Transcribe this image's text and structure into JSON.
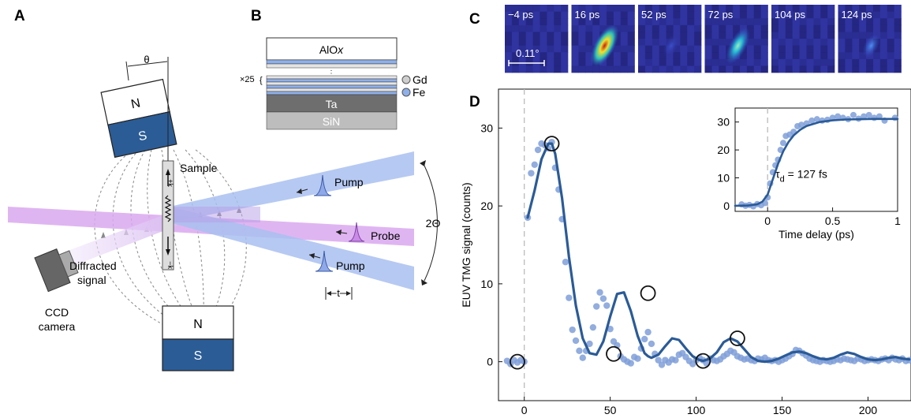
{
  "panels": {
    "a": "A",
    "b": "B",
    "c": "C",
    "d": "D"
  },
  "panel_a": {
    "theta": "θ",
    "magnet_pole_n": "N",
    "magnet_pole_s": "S",
    "sample": "Sample",
    "diffracted_line1": "Diffracted",
    "diffracted_line2": "signal",
    "ccd_line1": "CCD",
    "ccd_line2": "camera",
    "pump": "Pump",
    "probe": "Probe",
    "two_theta": "2Θ",
    "t": "t",
    "k_plus": "+k",
    "k_minus": "−k"
  },
  "panel_b": {
    "aloxa": "AlO",
    "aloxb": "x",
    "repeat": "×25",
    "gd": "Gd",
    "fe": "Fe",
    "ta": "Ta",
    "sin": "SiN"
  },
  "panel_c": {
    "frames": [
      "−4 ps",
      "16 ps",
      "52 ps",
      "72 ps",
      "104 ps",
      "124 ps"
    ],
    "frame_intensity": [
      0.0,
      1.0,
      0.05,
      0.45,
      0.0,
      0.2
    ],
    "scale": "0.11°"
  },
  "colors": {
    "pump": "#a9bff0",
    "probe": "#d9a8ee",
    "magnet_s": "#2b5c96",
    "fit": "#2b5b97",
    "points": "#7f9fd8"
  },
  "chart_data": [
    {
      "type": "scatter",
      "title": "",
      "xlabel": "Time delay (ps)",
      "ylabel": "EUV TMG signal (counts)",
      "xlim": [
        -15,
        225
      ],
      "ylim": [
        -5,
        35
      ],
      "xticks": [
        "0",
        "50",
        "100",
        "150",
        "200"
      ],
      "yticks": [
        "0",
        "10",
        "20",
        "30"
      ],
      "points_x": [
        -10,
        -8,
        -6,
        -4,
        -2,
        0,
        2,
        4,
        6,
        8,
        10,
        12,
        14,
        16,
        18,
        20,
        22,
        24,
        26,
        28,
        30,
        32,
        34,
        36,
        38,
        40,
        42,
        44,
        46,
        48,
        50,
        52,
        54,
        56,
        58,
        60,
        62,
        64,
        66,
        68,
        70,
        72,
        74,
        76,
        78,
        80,
        82,
        84,
        86,
        88,
        90,
        92,
        94,
        96,
        98,
        100,
        102,
        104,
        106,
        108,
        110,
        112,
        114,
        116,
        118,
        120,
        122,
        124,
        126,
        128,
        130,
        132,
        134,
        136,
        138,
        140,
        142,
        144,
        146,
        148,
        150,
        152,
        154,
        156,
        158,
        160,
        162,
        164,
        166,
        168,
        170,
        172,
        174,
        176,
        178,
        180,
        182,
        184,
        186,
        188,
        190,
        192,
        194,
        196,
        198,
        200,
        202,
        204,
        206,
        208,
        210,
        212,
        214,
        216,
        218,
        220,
        222,
        224
      ],
      "points_y": [
        0.1,
        -0.3,
        0.2,
        -0.1,
        0.2,
        0,
        18.5,
        24.2,
        25.3,
        27.2,
        28.0,
        27.8,
        27.4,
        28.2,
        24.9,
        22.1,
        18.3,
        12.8,
        8.2,
        4.1,
        2.7,
        1.4,
        0.5,
        1.4,
        2.3,
        4.4,
        7.1,
        8.9,
        8.1,
        7.2,
        4.2,
        2.6,
        2.1,
        0.7,
        0.3,
        0,
        -0.2,
        0.6,
        0.4,
        1.7,
        2.9,
        3.8,
        2.3,
        1.0,
        0.2,
        -0.4,
        0.2,
        -0.1,
        0.3,
        0.2,
        0.9,
        1.1,
        0.6,
        0.1,
        -0.3,
        0.2,
        0.5,
        0.2,
        -0.2,
        0.4,
        0.2,
        0.1,
        0.3,
        0.7,
        1.0,
        1.4,
        1.2,
        0.7,
        0.5,
        0.3,
        0.4,
        0.2,
        0.1,
        0.4,
        0.3,
        0.5,
        0.2,
        0.1,
        0.2,
        0,
        0.2,
        0.4,
        0.7,
        1.0,
        1.5,
        1.4,
        1.1,
        0.8,
        0.4,
        0.2,
        0.1,
        0,
        0.2,
        0.1,
        0,
        0.1,
        0.3,
        0.2,
        0.4,
        0.3,
        0.2,
        0.1,
        0.4,
        0.3,
        0.1,
        0.2,
        0.3,
        0.2,
        0.1,
        0.3,
        0.4,
        0.2,
        0.5,
        0.3,
        0.2,
        0.4,
        0.1,
        0.2
      ],
      "fit_x": [
        2,
        6,
        10,
        14,
        16,
        18,
        22,
        26,
        30,
        34,
        38,
        42,
        46,
        50,
        54,
        58,
        62,
        66,
        70,
        72,
        74,
        78,
        82,
        86,
        90,
        94,
        98,
        102,
        104,
        108,
        112,
        116,
        120,
        124,
        128,
        132,
        136,
        140,
        144,
        148,
        152,
        156,
        160,
        164,
        168,
        172,
        176,
        180,
        184,
        188,
        192,
        196,
        200,
        204,
        208,
        212,
        216,
        220,
        224
      ],
      "fit_y": [
        18.5,
        22.0,
        26.0,
        28.0,
        28.0,
        26.7,
        21.0,
        13.5,
        7.2,
        3.0,
        1.1,
        0.9,
        2.6,
        5.8,
        8.7,
        8.9,
        6.5,
        3.3,
        1.1,
        0.7,
        0.5,
        0.9,
        2.0,
        3.0,
        2.8,
        1.7,
        0.7,
        0.2,
        0.1,
        0.4,
        1.2,
        2.5,
        3.0,
        2.6,
        1.6,
        0.6,
        0.1,
        0,
        0.1,
        0.4,
        0.8,
        1.2,
        1.3,
        1.1,
        0.7,
        0.4,
        0.3,
        0.5,
        0.9,
        1.2,
        1.0,
        0.6,
        0.3,
        0.2,
        0.3,
        0.5,
        0.6,
        0.4,
        0.3
      ],
      "circled_x": [
        -4,
        16,
        52,
        72,
        104,
        124
      ],
      "circled_y": [
        0,
        28,
        1,
        8.8,
        0.1,
        3
      ]
    },
    {
      "type": "scatter",
      "title": "",
      "xlabel": "Time delay (ps)",
      "ylabel": "",
      "xlim": [
        -0.25,
        1.0
      ],
      "ylim": [
        -2,
        35
      ],
      "xticks": [
        "0",
        "0.5",
        "1"
      ],
      "yticks": [
        "0",
        "10",
        "20",
        "30"
      ],
      "annotation_main": "τ",
      "annotation_sub": "d",
      "annotation_rest": " = 127 fs",
      "points_x": [
        -0.2,
        -0.17,
        -0.14,
        -0.11,
        -0.08,
        -0.05,
        -0.02,
        0.0,
        0.02,
        0.04,
        0.06,
        0.08,
        0.1,
        0.12,
        0.14,
        0.17,
        0.2,
        0.23,
        0.26,
        0.3,
        0.34,
        0.38,
        0.42,
        0.46,
        0.5,
        0.54,
        0.58,
        0.62,
        0.66,
        0.7,
        0.74,
        0.78,
        0.82,
        0.86,
        0.9,
        0.98
      ],
      "points_y": [
        0.5,
        0,
        0.3,
        -0.2,
        0.6,
        0.2,
        1.0,
        3.0,
        8.0,
        12.0,
        14.5,
        16.5,
        20.0,
        22.5,
        25.0,
        25.5,
        26.5,
        28.5,
        29.0,
        29.5,
        30.5,
        31.0,
        30.5,
        30.8,
        31.5,
        32.0,
        31.5,
        31.0,
        32.5,
        31.2,
        32.0,
        32.5,
        31.5,
        32.0,
        30.5,
        31.5
      ],
      "fit_x": [
        -0.25,
        -0.15,
        -0.08,
        -0.04,
        0.0,
        0.04,
        0.08,
        0.12,
        0.16,
        0.2,
        0.25,
        0.3,
        0.4,
        0.5,
        0.6,
        0.7,
        0.8,
        0.9,
        1.0
      ],
      "fit_y": [
        0,
        0.1,
        0.5,
        1.5,
        4.0,
        9.5,
        15.0,
        19.5,
        22.8,
        25.2,
        27.2,
        28.6,
        30.0,
        30.6,
        30.9,
        31.0,
        31.1,
        31.1,
        31.1
      ]
    }
  ]
}
